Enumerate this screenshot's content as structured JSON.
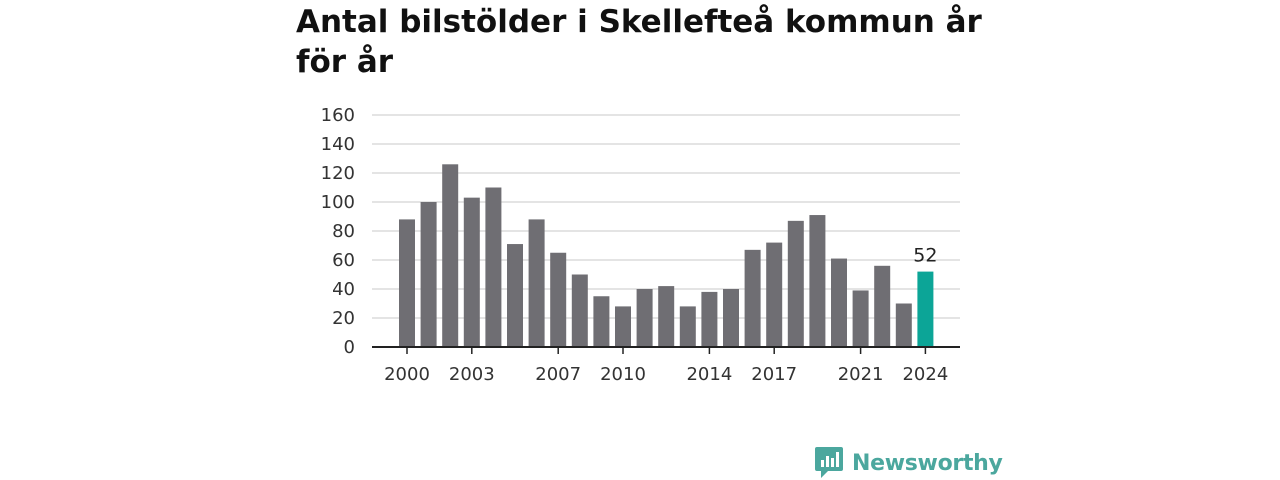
{
  "title": "Antal bilstölder i Skellefteå kommun år för år",
  "brand": {
    "name": "Newsworthy",
    "color": "#4ba79e"
  },
  "chart_data": {
    "type": "bar",
    "categories": [
      "2000",
      "2001",
      "2002",
      "2003",
      "2004",
      "2005",
      "2006",
      "2007",
      "2008",
      "2009",
      "2010",
      "2011",
      "2012",
      "2013",
      "2014",
      "2015",
      "2016",
      "2017",
      "2018",
      "2019",
      "2020",
      "2021",
      "2022",
      "2023",
      "2024"
    ],
    "values": [
      88,
      100,
      126,
      103,
      110,
      71,
      88,
      65,
      50,
      35,
      28,
      40,
      42,
      28,
      38,
      40,
      67,
      72,
      87,
      91,
      61,
      39,
      56,
      30,
      52
    ],
    "x_tick_labels": [
      "2000",
      "2003",
      "2007",
      "2010",
      "2014",
      "2017",
      "2021",
      "2024"
    ],
    "y_ticks": [
      0,
      20,
      40,
      60,
      80,
      100,
      120,
      140,
      160
    ],
    "ylim": [
      0,
      160
    ],
    "grid": true,
    "colors": {
      "bar": "#6f6e73",
      "highlight": "#0ca597",
      "grid": "#dcdcdc",
      "axis": "#222222",
      "text": "#333333"
    },
    "highlight": {
      "category": "2024",
      "label": "52"
    }
  }
}
